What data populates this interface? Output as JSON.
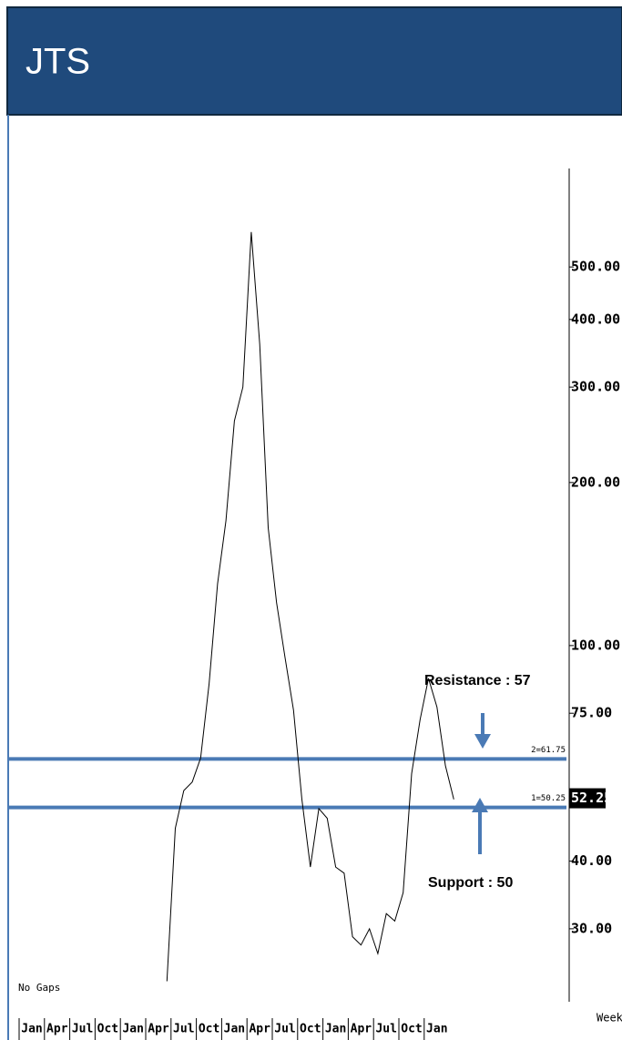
{
  "chart_data": {
    "type": "line",
    "title": "JTS",
    "categories": [
      "Jan",
      null,
      null,
      "Apr",
      null,
      null,
      "Jul",
      null,
      null,
      "Oct",
      null,
      null,
      "Jan",
      null,
      null,
      "Apr",
      null,
      null,
      "Jul",
      null,
      null,
      "Oct",
      null,
      null,
      "Jan",
      null,
      null,
      "Apr",
      null,
      null,
      "Jul",
      null,
      null,
      "Oct",
      null,
      null,
      "Jan",
      null,
      null,
      "Apr",
      null,
      null,
      "Jul",
      null,
      null,
      "Oct",
      null,
      null,
      "Jan",
      null,
      null
    ],
    "series": [
      {
        "color": "#000000",
        "values": [
          null,
          null,
          null,
          null,
          null,
          null,
          null,
          null,
          null,
          null,
          null,
          null,
          null,
          null,
          null,
          null,
          24,
          46,
          54,
          56,
          62,
          85,
          130,
          170,
          260,
          300,
          580,
          360,
          165,
          120,
          95,
          76,
          52,
          39,
          50,
          48,
          39,
          38,
          29,
          28,
          30,
          27,
          32,
          31,
          35,
          58,
          73,
          87,
          77,
          60,
          52
        ]
      }
    ],
    "ylim": [
      22,
      760
    ],
    "log_scale": true,
    "yticks": [
      {
        "value": 30,
        "label": "30.00"
      },
      {
        "value": 40,
        "label": "40.00"
      },
      {
        "value": 75,
        "label": "75.00"
      },
      {
        "value": 100,
        "label": "100.00"
      },
      {
        "value": 200,
        "label": "200.00"
      },
      {
        "value": 300,
        "label": "300.00"
      },
      {
        "value": 400,
        "label": "400.00"
      },
      {
        "value": 500,
        "label": "500.00"
      }
    ],
    "levels": [
      {
        "value": 61.75,
        "label": "2=61.75"
      },
      {
        "value": 50.25,
        "label": "1=50.25"
      }
    ],
    "level_color": "#4a7ab5",
    "last_price": {
      "value": 52.25,
      "label": "52.25"
    },
    "annotations": [
      "Resistance : 57",
      "Support : 50",
      "No Gaps"
    ],
    "x_axis_label": "Week"
  }
}
